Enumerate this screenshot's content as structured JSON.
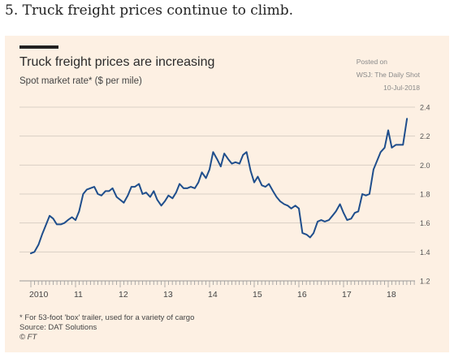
{
  "heading": "5. Truck freight prices continue to climb.",
  "posted": {
    "line1": "Posted on",
    "line2": "WSJ: The Daily Shot",
    "line3": "10-Jul-2018"
  },
  "notes": {
    "footnote": "* For 53-foot 'box' trailer, used for a variety of cargo",
    "source": "Source: DAT Solutions",
    "credit": "© FT"
  },
  "colors": {
    "background": "#fdf0e3",
    "line": "#1f4e8c",
    "grid": "#d9cfc4"
  },
  "chart_data": {
    "type": "line",
    "title": "Truck freight prices are increasing",
    "ylabel": "Spot market rate* ($ per mile)",
    "xlabel": "",
    "ylim": [
      1.2,
      2.4
    ],
    "xlim": [
      2010,
      2018.6
    ],
    "yticks": [
      "1.2",
      "1.4",
      "1.6",
      "1.8",
      "2.0",
      "2.2",
      "2.4"
    ],
    "y_axis_side": "right",
    "grid": true,
    "xticks": [
      {
        "label": "2010",
        "value": 2010
      },
      {
        "label": "11",
        "value": 2011
      },
      {
        "label": "12",
        "value": 2012
      },
      {
        "label": "13",
        "value": 2013
      },
      {
        "label": "14",
        "value": 2014
      },
      {
        "label": "15",
        "value": 2015
      },
      {
        "label": "16",
        "value": 2016
      },
      {
        "label": "17",
        "value": 2017
      },
      {
        "label": "18",
        "value": 2018
      }
    ],
    "series": [
      {
        "points": [
          [
            2010.0,
            1.39
          ],
          [
            2010.08,
            1.4
          ],
          [
            2010.17,
            1.45
          ],
          [
            2010.25,
            1.52
          ],
          [
            2010.33,
            1.58
          ],
          [
            2010.42,
            1.65
          ],
          [
            2010.5,
            1.63
          ],
          [
            2010.58,
            1.59
          ],
          [
            2010.67,
            1.59
          ],
          [
            2010.75,
            1.6
          ],
          [
            2010.83,
            1.62
          ],
          [
            2010.92,
            1.64
          ],
          [
            2011.0,
            1.62
          ],
          [
            2011.08,
            1.68
          ],
          [
            2011.17,
            1.8
          ],
          [
            2011.25,
            1.83
          ],
          [
            2011.33,
            1.84
          ],
          [
            2011.42,
            1.85
          ],
          [
            2011.5,
            1.8
          ],
          [
            2011.58,
            1.79
          ],
          [
            2011.67,
            1.82
          ],
          [
            2011.75,
            1.82
          ],
          [
            2011.83,
            1.84
          ],
          [
            2011.92,
            1.78
          ],
          [
            2012.0,
            1.76
          ],
          [
            2012.08,
            1.74
          ],
          [
            2012.17,
            1.79
          ],
          [
            2012.25,
            1.85
          ],
          [
            2012.33,
            1.85
          ],
          [
            2012.42,
            1.87
          ],
          [
            2012.5,
            1.8
          ],
          [
            2012.58,
            1.81
          ],
          [
            2012.67,
            1.78
          ],
          [
            2012.75,
            1.82
          ],
          [
            2012.83,
            1.76
          ],
          [
            2012.92,
            1.72
          ],
          [
            2013.0,
            1.75
          ],
          [
            2013.08,
            1.79
          ],
          [
            2013.17,
            1.77
          ],
          [
            2013.25,
            1.81
          ],
          [
            2013.33,
            1.87
          ],
          [
            2013.42,
            1.84
          ],
          [
            2013.5,
            1.84
          ],
          [
            2013.58,
            1.85
          ],
          [
            2013.67,
            1.84
          ],
          [
            2013.75,
            1.88
          ],
          [
            2013.83,
            1.95
          ],
          [
            2013.92,
            1.91
          ],
          [
            2014.0,
            1.97
          ],
          [
            2014.08,
            2.09
          ],
          [
            2014.17,
            2.04
          ],
          [
            2014.25,
            1.99
          ],
          [
            2014.33,
            2.08
          ],
          [
            2014.42,
            2.04
          ],
          [
            2014.5,
            2.01
          ],
          [
            2014.58,
            2.02
          ],
          [
            2014.67,
            2.01
          ],
          [
            2014.75,
            2.07
          ],
          [
            2014.83,
            2.09
          ],
          [
            2014.92,
            1.96
          ],
          [
            2015.0,
            1.88
          ],
          [
            2015.08,
            1.92
          ],
          [
            2015.17,
            1.86
          ],
          [
            2015.25,
            1.85
          ],
          [
            2015.33,
            1.87
          ],
          [
            2015.42,
            1.82
          ],
          [
            2015.5,
            1.78
          ],
          [
            2015.58,
            1.75
          ],
          [
            2015.67,
            1.73
          ],
          [
            2015.75,
            1.72
          ],
          [
            2015.83,
            1.7
          ],
          [
            2015.92,
            1.72
          ],
          [
            2016.0,
            1.7
          ],
          [
            2016.08,
            1.53
          ],
          [
            2016.17,
            1.52
          ],
          [
            2016.25,
            1.5
          ],
          [
            2016.33,
            1.53
          ],
          [
            2016.42,
            1.61
          ],
          [
            2016.5,
            1.62
          ],
          [
            2016.58,
            1.61
          ],
          [
            2016.67,
            1.62
          ],
          [
            2016.75,
            1.65
          ],
          [
            2016.83,
            1.68
          ],
          [
            2016.92,
            1.73
          ],
          [
            2017.0,
            1.67
          ],
          [
            2017.08,
            1.62
          ],
          [
            2017.17,
            1.63
          ],
          [
            2017.25,
            1.67
          ],
          [
            2017.33,
            1.68
          ],
          [
            2017.42,
            1.8
          ],
          [
            2017.5,
            1.79
          ],
          [
            2017.58,
            1.8
          ],
          [
            2017.67,
            1.97
          ],
          [
            2017.75,
            2.03
          ],
          [
            2017.83,
            2.09
          ],
          [
            2017.92,
            2.12
          ],
          [
            2018.0,
            2.24
          ],
          [
            2018.08,
            2.12
          ],
          [
            2018.17,
            2.14
          ],
          [
            2018.25,
            2.14
          ],
          [
            2018.33,
            2.14
          ],
          [
            2018.42,
            2.32
          ]
        ]
      }
    ]
  }
}
